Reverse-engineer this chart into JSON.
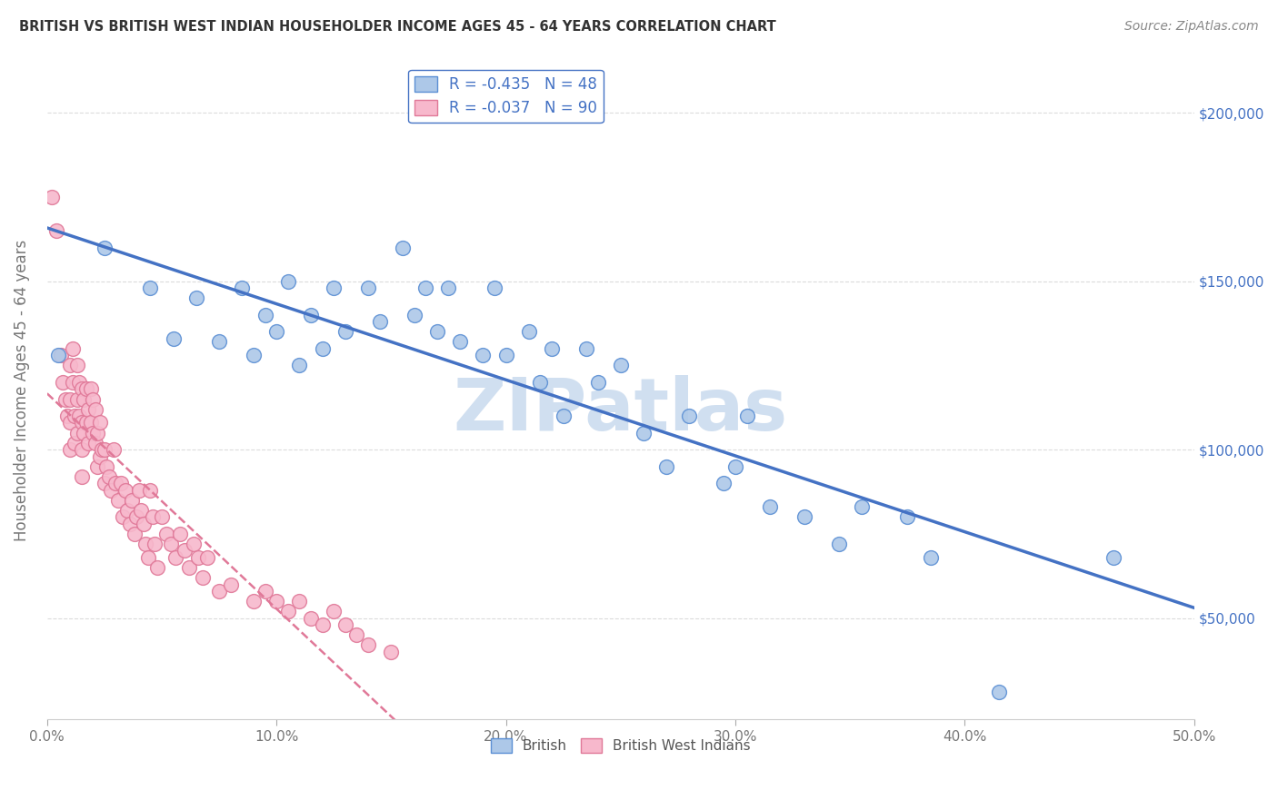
{
  "title": "BRITISH VS BRITISH WEST INDIAN HOUSEHOLDER INCOME AGES 45 - 64 YEARS CORRELATION CHART",
  "source": "Source: ZipAtlas.com",
  "ylabel": "Householder Income Ages 45 - 64 years",
  "xlim": [
    0.0,
    0.5
  ],
  "ylim": [
    20000,
    215000
  ],
  "xtick_labels": [
    "0.0%",
    "10.0%",
    "20.0%",
    "30.0%",
    "40.0%",
    "50.0%"
  ],
  "xtick_values": [
    0.0,
    0.1,
    0.2,
    0.3,
    0.4,
    0.5
  ],
  "ytick_values": [
    50000,
    100000,
    150000,
    200000
  ],
  "ytick_labels": [
    "$50,000",
    "$100,000",
    "$150,000",
    "$200,000"
  ],
  "british_R": -0.435,
  "british_N": 48,
  "bwi_R": -0.037,
  "bwi_N": 90,
  "british_color": "#adc8e8",
  "british_edge_color": "#5b8fd4",
  "british_line_color": "#4472c4",
  "bwi_color": "#f7b8cc",
  "bwi_edge_color": "#e07898",
  "bwi_line_color": "#e07898",
  "right_tick_color": "#4472c4",
  "watermark_color": "#d0dff0",
  "background_color": "#ffffff",
  "grid_color": "#cccccc",
  "british_x": [
    0.005,
    0.025,
    0.045,
    0.055,
    0.065,
    0.075,
    0.085,
    0.09,
    0.095,
    0.1,
    0.105,
    0.11,
    0.115,
    0.12,
    0.125,
    0.13,
    0.14,
    0.145,
    0.155,
    0.16,
    0.165,
    0.17,
    0.175,
    0.18,
    0.19,
    0.195,
    0.2,
    0.21,
    0.215,
    0.22,
    0.225,
    0.235,
    0.24,
    0.25,
    0.26,
    0.27,
    0.28,
    0.295,
    0.3,
    0.305,
    0.315,
    0.33,
    0.345,
    0.355,
    0.375,
    0.385,
    0.415,
    0.465
  ],
  "british_y": [
    128000,
    160000,
    148000,
    133000,
    145000,
    132000,
    148000,
    128000,
    140000,
    135000,
    150000,
    125000,
    140000,
    130000,
    148000,
    135000,
    148000,
    138000,
    160000,
    140000,
    148000,
    135000,
    148000,
    132000,
    128000,
    148000,
    128000,
    135000,
    120000,
    130000,
    110000,
    130000,
    120000,
    125000,
    105000,
    95000,
    110000,
    90000,
    95000,
    110000,
    83000,
    80000,
    72000,
    83000,
    80000,
    68000,
    28000,
    68000
  ],
  "bwi_x": [
    0.002,
    0.004,
    0.006,
    0.007,
    0.008,
    0.009,
    0.01,
    0.01,
    0.01,
    0.01,
    0.011,
    0.011,
    0.012,
    0.012,
    0.013,
    0.013,
    0.013,
    0.014,
    0.014,
    0.015,
    0.015,
    0.015,
    0.015,
    0.016,
    0.016,
    0.017,
    0.017,
    0.018,
    0.018,
    0.019,
    0.019,
    0.02,
    0.02,
    0.021,
    0.021,
    0.022,
    0.022,
    0.023,
    0.023,
    0.024,
    0.025,
    0.025,
    0.026,
    0.027,
    0.028,
    0.029,
    0.03,
    0.031,
    0.032,
    0.033,
    0.034,
    0.035,
    0.036,
    0.037,
    0.038,
    0.039,
    0.04,
    0.041,
    0.042,
    0.043,
    0.044,
    0.045,
    0.046,
    0.047,
    0.048,
    0.05,
    0.052,
    0.054,
    0.056,
    0.058,
    0.06,
    0.062,
    0.064,
    0.066,
    0.068,
    0.07,
    0.075,
    0.08,
    0.09,
    0.095,
    0.1,
    0.105,
    0.11,
    0.115,
    0.12,
    0.125,
    0.13,
    0.135,
    0.14,
    0.15
  ],
  "bwi_y": [
    175000,
    165000,
    128000,
    120000,
    115000,
    110000,
    125000,
    115000,
    108000,
    100000,
    130000,
    120000,
    110000,
    102000,
    125000,
    115000,
    105000,
    120000,
    110000,
    118000,
    108000,
    100000,
    92000,
    115000,
    105000,
    118000,
    108000,
    112000,
    102000,
    118000,
    108000,
    115000,
    105000,
    112000,
    102000,
    105000,
    95000,
    108000,
    98000,
    100000,
    100000,
    90000,
    95000,
    92000,
    88000,
    100000,
    90000,
    85000,
    90000,
    80000,
    88000,
    82000,
    78000,
    85000,
    75000,
    80000,
    88000,
    82000,
    78000,
    72000,
    68000,
    88000,
    80000,
    72000,
    65000,
    80000,
    75000,
    72000,
    68000,
    75000,
    70000,
    65000,
    72000,
    68000,
    62000,
    68000,
    58000,
    60000,
    55000,
    58000,
    55000,
    52000,
    55000,
    50000,
    48000,
    52000,
    48000,
    45000,
    42000,
    40000
  ]
}
